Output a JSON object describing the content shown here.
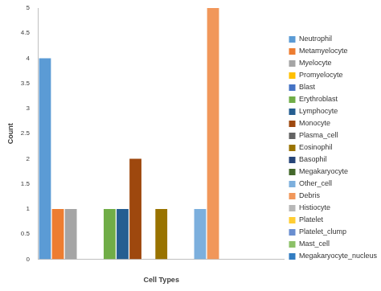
{
  "chart_data": {
    "type": "bar",
    "x_label": "Cell Types",
    "y_label": "Count",
    "categories": [
      null
    ],
    "series": [
      {
        "name": "Neutrophil",
        "color": "#5b9bd5",
        "values": [
          4
        ]
      },
      {
        "name": "Metamyelocyte",
        "color": "#ed7d31",
        "values": [
          1
        ]
      },
      {
        "name": "Myelocyte",
        "color": "#a5a5a5",
        "values": [
          1
        ]
      },
      {
        "name": "Promyelocyte",
        "color": "#ffc000",
        "values": [
          0
        ]
      },
      {
        "name": "Blast",
        "color": "#4472c4",
        "values": [
          0
        ]
      },
      {
        "name": "Erythroblast",
        "color": "#70ad47",
        "values": [
          1
        ]
      },
      {
        "name": "Lymphocyte",
        "color": "#255e91",
        "values": [
          1
        ]
      },
      {
        "name": "Monocyte",
        "color": "#9e480e",
        "values": [
          2
        ]
      },
      {
        "name": "Plasma_cell",
        "color": "#636363",
        "values": [
          0
        ]
      },
      {
        "name": "Eosinophil",
        "color": "#997300",
        "values": [
          1
        ]
      },
      {
        "name": "Basophil",
        "color": "#264478",
        "values": [
          0
        ]
      },
      {
        "name": "Megakaryocyte",
        "color": "#43682b",
        "values": [
          0
        ]
      },
      {
        "name": "Other_cell",
        "color": "#7cafdd",
        "values": [
          1
        ]
      },
      {
        "name": "Debris",
        "color": "#f1975a",
        "values": [
          5
        ]
      },
      {
        "name": "Histiocyte",
        "color": "#b7b7b7",
        "values": [
          0
        ]
      },
      {
        "name": "Platelet",
        "color": "#ffcd33",
        "values": [
          0
        ]
      },
      {
        "name": "Platelet_clump",
        "color": "#698ed0",
        "values": [
          0
        ]
      },
      {
        "name": "Mast_cell",
        "color": "#8cc168",
        "values": [
          0
        ]
      },
      {
        "name": "Megakaryocyte_nucleus",
        "color": "#327dc2",
        "values": [
          0
        ]
      }
    ],
    "ylim": [
      0,
      5
    ],
    "yticks": [
      0,
      0.5,
      1,
      1.5,
      2,
      2.5,
      3,
      3.5,
      4,
      4.5,
      5
    ],
    "grid": false,
    "legend": "right"
  }
}
